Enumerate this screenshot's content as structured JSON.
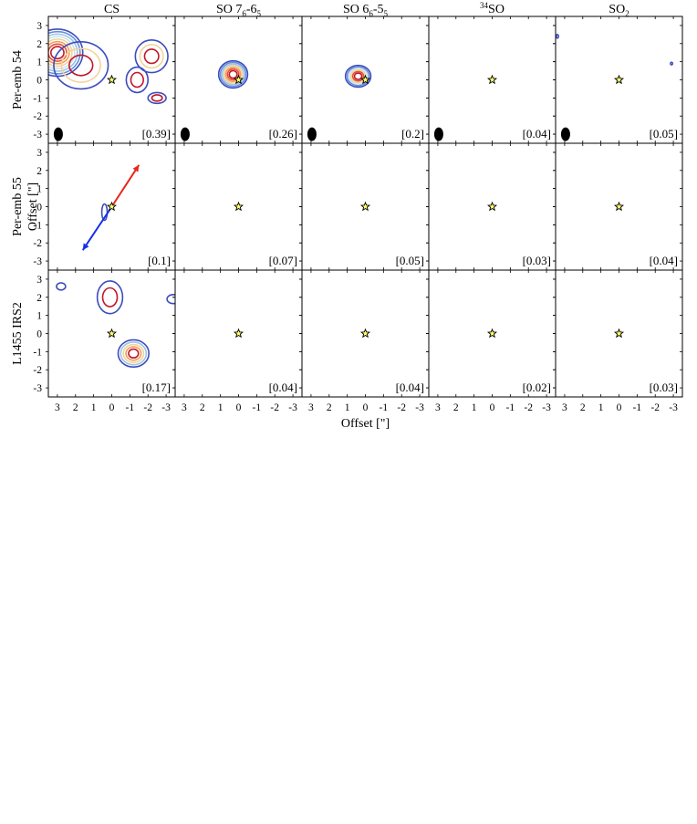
{
  "figure": {
    "columns": [
      "CS",
      "SO 7_6-6_5",
      "SO 6_6-5_5",
      "34SO",
      "SO_2"
    ],
    "column_labels": [
      {
        "main": "CS"
      },
      {
        "main": "SO 7",
        "sub1": "6",
        "mid": "-6",
        "sub2": "5"
      },
      {
        "main": "SO 6",
        "sub1": "6",
        "mid": "-5",
        "sub2": "5"
      },
      {
        "sup": "34",
        "main": "SO"
      },
      {
        "main": "SO",
        "sub1": "2"
      }
    ],
    "rows": [
      "Per-emb 54",
      "Per-emb 55",
      "L1455 IRS2"
    ],
    "xlabel": "Offset [\"]",
    "ylabel": "Offset [\"]",
    "tick_labels": [
      "3",
      "2",
      "1",
      "0",
      "-1",
      "-2",
      "-3"
    ],
    "ytick_labels": [
      "3",
      "2",
      "1",
      "0",
      "-1",
      "-2",
      "-3"
    ]
  },
  "colors": {
    "contour_levels": [
      "#3b4cc0",
      "#6a8fd8",
      "#9ec3e6",
      "#c9e3ef",
      "#f2d39a",
      "#f29b5c",
      "#e4522f",
      "#c0172a"
    ],
    "star_fill": "#ffff66",
    "outflow_red": "#e8261c",
    "outflow_blue": "#1730e8",
    "beam": "#000000"
  },
  "chart_data": {
    "type": "contour-map-grid",
    "axes": {
      "xlim": [
        3.5,
        -3.5
      ],
      "ylim": [
        -3.5,
        3.5
      ],
      "x_direction": "decreasing",
      "units": "arcsec"
    },
    "star_marker": {
      "x": 0,
      "y": 0
    },
    "panels": [
      [
        {
          "peak": "[0.39]",
          "beam": true,
          "blobs": [
            {
              "x": 3.0,
              "y": 1.5,
              "rx": 1.4,
              "ry": 1.3,
              "levels": 8
            },
            {
              "x": 1.7,
              "y": 0.8,
              "rx": 1.5,
              "ry": 1.3,
              "levels": 3
            },
            {
              "x": -2.2,
              "y": 1.3,
              "rx": 0.9,
              "ry": 0.9,
              "levels": 3
            },
            {
              "x": -1.4,
              "y": 0.0,
              "rx": 0.6,
              "ry": 0.7,
              "levels": 2
            },
            {
              "x": -2.5,
              "y": -1.0,
              "rx": 0.5,
              "ry": 0.3,
              "levels": 2
            }
          ]
        },
        {
          "peak": "[0.26]",
          "beam": true,
          "blobs": [
            {
              "x": 0.3,
              "y": 0.3,
              "rx": 0.8,
              "ry": 0.75,
              "levels": 7
            }
          ]
        },
        {
          "peak": "[0.2]",
          "beam": true,
          "blobs": [
            {
              "x": 0.4,
              "y": 0.2,
              "rx": 0.7,
              "ry": 0.6,
              "levels": 6
            }
          ]
        },
        {
          "peak": "[0.04]",
          "beam": true,
          "blobs": []
        },
        {
          "peak": "[0.05]",
          "beam": true,
          "blobs": [
            {
              "x": 3.4,
              "y": 2.4,
              "rx": 0.06,
              "ry": 0.1,
              "levels": 1
            },
            {
              "x": -2.9,
              "y": 0.9,
              "rx": 0.05,
              "ry": 0.07,
              "levels": 1
            }
          ]
        }
      ],
      [
        {
          "peak": "[0.1]",
          "beam": false,
          "blobs": [
            {
              "x": 0.4,
              "y": -0.3,
              "rx": 0.15,
              "ry": 0.45,
              "levels": 1
            }
          ],
          "outflows": [
            {
              "color": "red",
              "x1": 0,
              "y1": 0,
              "x2": -1.5,
              "y2": 2.3
            },
            {
              "color": "blue",
              "x1": 0,
              "y1": 0,
              "x2": 1.6,
              "y2": -2.4
            }
          ]
        },
        {
          "peak": "[0.07]",
          "beam": false,
          "blobs": []
        },
        {
          "peak": "[0.05]",
          "beam": false,
          "blobs": []
        },
        {
          "peak": "[0.03]",
          "beam": false,
          "blobs": []
        },
        {
          "peak": "[0.04]",
          "beam": false,
          "blobs": []
        }
      ],
      [
        {
          "peak": "[0.17]",
          "beam": false,
          "blobs": [
            {
              "x": 0.1,
              "y": 2.0,
              "rx": 0.7,
              "ry": 0.9,
              "levels": 2
            },
            {
              "x": -1.2,
              "y": -1.1,
              "rx": 0.85,
              "ry": 0.75,
              "levels": 5
            },
            {
              "x": 2.8,
              "y": 2.6,
              "rx": 0.25,
              "ry": 0.2,
              "levels": 1
            },
            {
              "x": -3.4,
              "y": 1.9,
              "rx": 0.35,
              "ry": 0.25,
              "levels": 1
            }
          ]
        },
        {
          "peak": "[0.04]",
          "beam": false,
          "blobs": []
        },
        {
          "peak": "[0.04]",
          "beam": false,
          "blobs": []
        },
        {
          "peak": "[0.02]",
          "beam": false,
          "blobs": []
        },
        {
          "peak": "[0.03]",
          "beam": false,
          "blobs": []
        }
      ]
    ]
  }
}
